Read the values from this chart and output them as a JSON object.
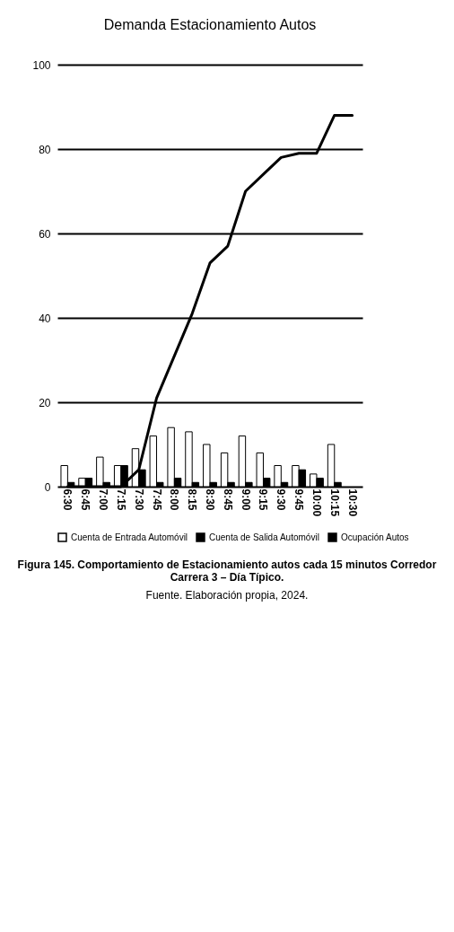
{
  "chart_data": {
    "type": "bar",
    "title": "Demanda Estacionamiento Autos",
    "categories": [
      "6:30",
      "6:45",
      "7:00",
      "7:15",
      "7:30",
      "7:45",
      "8:00",
      "8:15",
      "8:30",
      "8:45",
      "9:00",
      "9:15",
      "9:30",
      "9:45",
      "10:00",
      "10:15",
      "10:30"
    ],
    "series": [
      {
        "name": "Cuenta de Entrada Automóvil",
        "color": "#ffffff",
        "values": [
          5,
          2,
          7,
          5,
          9,
          12,
          14,
          13,
          10,
          8,
          12,
          8,
          5,
          5,
          3,
          10,
          0
        ]
      },
      {
        "name": "Cuenta de Salida Automóvil",
        "color": "#000000",
        "values": [
          1,
          2,
          1,
          5,
          4,
          1,
          2,
          1,
          1,
          1,
          1,
          2,
          1,
          4,
          2,
          1,
          0
        ]
      },
      {
        "name": "Ocupación Autos",
        "type": "line",
        "color": "#000000",
        "values": [
          0,
          0,
          0,
          0,
          4,
          21,
          31,
          41,
          53,
          57,
          70,
          74,
          78,
          79,
          79,
          88,
          88
        ]
      }
    ],
    "ylim": [
      0,
      100
    ],
    "yticks": [
      0,
      20,
      40,
      60,
      80,
      100
    ],
    "grid": "y",
    "legend": "bottom",
    "annotations": [
      "Figura 145. Comportamiento de Estacionamiento autos cada 15 minutos Corredor Carrera 3 – Día Típico.",
      "Fuente. Elaboración propia, 2024."
    ]
  }
}
